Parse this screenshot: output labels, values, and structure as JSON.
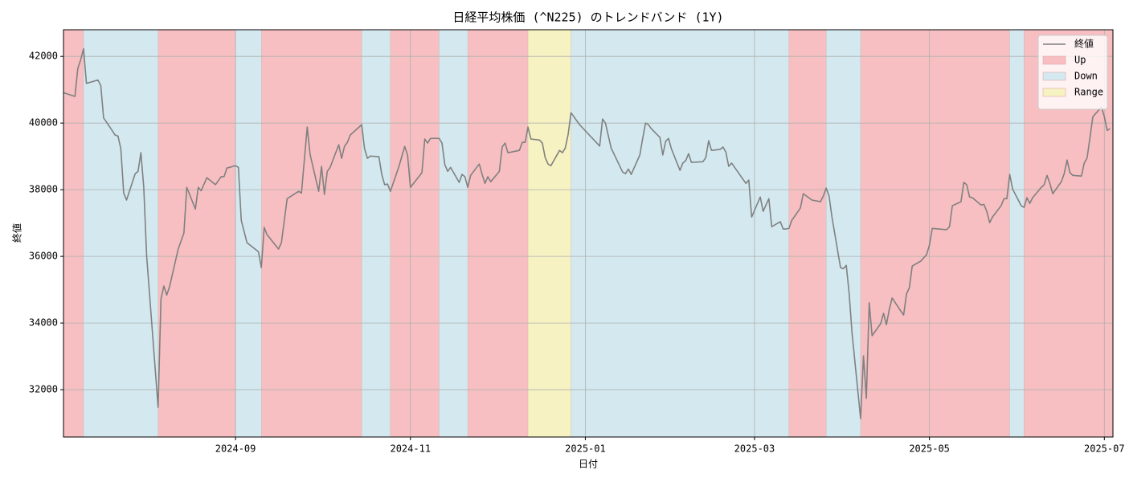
{
  "chart_data": {
    "type": "line",
    "title": "日経平均株価 (^N225) のトレンドバンド (1Y)",
    "xlabel": "日付",
    "ylabel": "終値",
    "xlim": [
      "2024-07-03",
      "2025-07-04"
    ],
    "xticks": [
      "2024-09",
      "2024-11",
      "2025-01",
      "2025-03",
      "2025-05",
      "2025-07"
    ],
    "ylim": [
      30580,
      42800
    ],
    "yticks": [
      32000,
      34000,
      36000,
      38000,
      40000,
      42000
    ],
    "grid": true,
    "legend": "upper right",
    "x": [
      "2024-07-03",
      "2024-07-07",
      "2024-07-08",
      "2024-07-09",
      "2024-07-10",
      "2024-07-11",
      "2024-07-15",
      "2024-07-16",
      "2024-07-17",
      "2024-07-18",
      "2024-07-21",
      "2024-07-22",
      "2024-07-23",
      "2024-07-24",
      "2024-07-25",
      "2024-07-28",
      "2024-07-29",
      "2024-07-30",
      "2024-07-31",
      "2024-08-01",
      "2024-08-05",
      "2024-08-06",
      "2024-08-07",
      "2024-08-08",
      "2024-08-09",
      "2024-08-12",
      "2024-08-14",
      "2024-08-15",
      "2024-08-18",
      "2024-08-19",
      "2024-08-20",
      "2024-08-22",
      "2024-08-25",
      "2024-08-27",
      "2024-08-28",
      "2024-08-29",
      "2024-09-01",
      "2024-09-02",
      "2024-09-03",
      "2024-09-05",
      "2024-09-09",
      "2024-09-10",
      "2024-09-11",
      "2024-09-12",
      "2024-09-16",
      "2024-09-17",
      "2024-09-19",
      "2024-09-23",
      "2024-09-24",
      "2024-09-26",
      "2024-09-27",
      "2024-09-30",
      "2024-10-01",
      "2024-10-02",
      "2024-10-03",
      "2024-10-04",
      "2024-10-07",
      "2024-10-08",
      "2024-10-09",
      "2024-10-10",
      "2024-10-11",
      "2024-10-15",
      "2024-10-16",
      "2024-10-17",
      "2024-10-18",
      "2024-10-21",
      "2024-10-22",
      "2024-10-23",
      "2024-10-24",
      "2024-10-25",
      "2024-10-28",
      "2024-10-30",
      "2024-10-31",
      "2024-11-01",
      "2024-11-05",
      "2024-11-06",
      "2024-11-07",
      "2024-11-08",
      "2024-11-11",
      "2024-11-12",
      "2024-11-13",
      "2024-11-14",
      "2024-11-15",
      "2024-11-18",
      "2024-11-19",
      "2024-11-20",
      "2024-11-21",
      "2024-11-22",
      "2024-11-25",
      "2024-11-26",
      "2024-11-27",
      "2024-11-28",
      "2024-11-29",
      "2024-12-02",
      "2024-12-03",
      "2024-12-04",
      "2024-12-05",
      "2024-12-09",
      "2024-12-10",
      "2024-12-11",
      "2024-12-12",
      "2024-12-13",
      "2024-12-16",
      "2024-12-17",
      "2024-12-18",
      "2024-12-19",
      "2024-12-20",
      "2024-12-23",
      "2024-12-24",
      "2024-12-25",
      "2024-12-26",
      "2024-12-27",
      "2024-12-30",
      "2025-01-06",
      "2025-01-07",
      "2025-01-08",
      "2025-01-10",
      "2025-01-14",
      "2025-01-15",
      "2025-01-16",
      "2025-01-17",
      "2025-01-20",
      "2025-01-21",
      "2025-01-22",
      "2025-01-23",
      "2025-01-24",
      "2025-01-27",
      "2025-01-28",
      "2025-01-29",
      "2025-01-30",
      "2025-01-31",
      "2025-02-03",
      "2025-02-04",
      "2025-02-05",
      "2025-02-06",
      "2025-02-07",
      "2025-02-11",
      "2025-02-12",
      "2025-02-13",
      "2025-02-14",
      "2025-02-17",
      "2025-02-18",
      "2025-02-19",
      "2025-02-20",
      "2025-02-21",
      "2025-02-25",
      "2025-02-26",
      "2025-02-27",
      "2025-02-28",
      "2025-03-03",
      "2025-03-04",
      "2025-03-05",
      "2025-03-06",
      "2025-03-07",
      "2025-03-10",
      "2025-03-11",
      "2025-03-12",
      "2025-03-13",
      "2025-03-14",
      "2025-03-17",
      "2025-03-18",
      "2025-03-21",
      "2025-03-24",
      "2025-03-25",
      "2025-03-26",
      "2025-03-27",
      "2025-03-28",
      "2025-03-31",
      "2025-04-01",
      "2025-04-02",
      "2025-04-03",
      "2025-04-04",
      "2025-04-07",
      "2025-04-08",
      "2025-04-09",
      "2025-04-10",
      "2025-04-11",
      "2025-04-14",
      "2025-04-15",
      "2025-04-16",
      "2025-04-17",
      "2025-04-18",
      "2025-04-21",
      "2025-04-22",
      "2025-04-23",
      "2025-04-24",
      "2025-04-25",
      "2025-04-28",
      "2025-04-30",
      "2025-05-01",
      "2025-05-02",
      "2025-05-07",
      "2025-05-08",
      "2025-05-09",
      "2025-05-12",
      "2025-05-13",
      "2025-05-14",
      "2025-05-15",
      "2025-05-16",
      "2025-05-19",
      "2025-05-20",
      "2025-05-21",
      "2025-05-22",
      "2025-05-23",
      "2025-05-26",
      "2025-05-27",
      "2025-05-28",
      "2025-05-29",
      "2025-05-30",
      "2025-06-02",
      "2025-06-03",
      "2025-06-04",
      "2025-06-05",
      "2025-06-06",
      "2025-06-09",
      "2025-06-10",
      "2025-06-11",
      "2025-06-12",
      "2025-06-13",
      "2025-06-16",
      "2025-06-17",
      "2025-06-18",
      "2025-06-19",
      "2025-06-20",
      "2025-06-23",
      "2025-06-24",
      "2025-06-25",
      "2025-06-26",
      "2025-06-27",
      "2025-06-30",
      "2025-07-01",
      "2025-07-02",
      "2025-07-03"
    ],
    "series": [
      {
        "name": "終値",
        "color": "#808080",
        "values": [
          40910,
          40800,
          41640,
          41900,
          42230,
          41190,
          41290,
          41130,
          40150,
          40030,
          39640,
          39610,
          39230,
          37900,
          37690,
          38480,
          38550,
          39110,
          38070,
          36020,
          31470,
          34720,
          35110,
          34840,
          35090,
          36220,
          36700,
          38070,
          37420,
          38070,
          37970,
          38360,
          38150,
          38390,
          38390,
          38650,
          38720,
          38670,
          37080,
          36410,
          36140,
          35660,
          36870,
          36650,
          36220,
          36410,
          37730,
          37950,
          37900,
          39880,
          39060,
          37950,
          38700,
          37860,
          38550,
          38670,
          39350,
          38940,
          39300,
          39420,
          39640,
          39950,
          39230,
          38940,
          39010,
          38990,
          38460,
          38150,
          38170,
          37950,
          38700,
          39300,
          39040,
          38070,
          38510,
          39520,
          39400,
          39540,
          39540,
          39400,
          38750,
          38550,
          38670,
          38220,
          38460,
          38390,
          38070,
          38430,
          38770,
          38460,
          38190,
          38390,
          38240,
          38550,
          39280,
          39400,
          39110,
          39180,
          39420,
          39420,
          39880,
          39520,
          39490,
          39400,
          38960,
          38770,
          38720,
          39180,
          39110,
          39250,
          39660,
          40310,
          39950,
          39310,
          40120,
          40000,
          39250,
          38530,
          38480,
          38620,
          38460,
          39040,
          39540,
          40000,
          39950,
          39830,
          39570,
          39040,
          39450,
          39540,
          39230,
          38580,
          38800,
          38870,
          39080,
          38820,
          38840,
          38960,
          39470,
          39180,
          39210,
          39280,
          39130,
          38700,
          38800,
          38310,
          38190,
          38290,
          37180,
          37780,
          37350,
          37540,
          37730,
          36890,
          37040,
          36820,
          36820,
          36840,
          37080,
          37450,
          37880,
          37690,
          37640,
          37810,
          38050,
          37810,
          37180,
          35660,
          35630,
          35730,
          34890,
          33710,
          31130,
          33010,
          31740,
          34610,
          33620,
          33980,
          34290,
          33950,
          34410,
          34750,
          34360,
          34240,
          34870,
          35060,
          35710,
          35860,
          36050,
          36340,
          36840,
          36800,
          36890,
          37520,
          37640,
          38220,
          38150,
          37780,
          37760,
          37540,
          37560,
          37350,
          37010,
          37180,
          37520,
          37730,
          37730,
          38460,
          38020,
          37520,
          37470,
          37760,
          37590,
          37760,
          38070,
          38150,
          38430,
          38190,
          37880,
          38240,
          38480,
          38890,
          38510,
          38430,
          38410,
          38800,
          38960,
          39570,
          40190,
          40480,
          40190,
          39780,
          39830
        ]
      }
    ],
    "band_styles": [
      {
        "name": "Up",
        "color": "#f7bfc1"
      },
      {
        "name": "Down",
        "color": "#d3e9ef"
      },
      {
        "name": "Range",
        "color": "#f6f2c2"
      }
    ],
    "bands": [
      {
        "start": "2024-07-03",
        "end": "2024-07-10",
        "trend": "Up"
      },
      {
        "start": "2024-07-10",
        "end": "2024-08-05",
        "trend": "Down"
      },
      {
        "start": "2024-08-05",
        "end": "2024-09-01",
        "trend": "Up"
      },
      {
        "start": "2024-09-01",
        "end": "2024-09-10",
        "trend": "Down"
      },
      {
        "start": "2024-09-10",
        "end": "2024-10-15",
        "trend": "Up"
      },
      {
        "start": "2024-10-15",
        "end": "2024-10-25",
        "trend": "Down"
      },
      {
        "start": "2024-10-25",
        "end": "2024-11-11",
        "trend": "Up"
      },
      {
        "start": "2024-11-11",
        "end": "2024-11-21",
        "trend": "Down"
      },
      {
        "start": "2024-11-21",
        "end": "2024-12-12",
        "trend": "Up"
      },
      {
        "start": "2024-12-12",
        "end": "2024-12-27",
        "trend": "Range"
      },
      {
        "start": "2024-12-27",
        "end": "2025-03-13",
        "trend": "Down"
      },
      {
        "start": "2025-03-13",
        "end": "2025-03-26",
        "trend": "Up"
      },
      {
        "start": "2025-03-26",
        "end": "2025-04-07",
        "trend": "Down"
      },
      {
        "start": "2025-04-07",
        "end": "2025-05-29",
        "trend": "Up"
      },
      {
        "start": "2025-05-29",
        "end": "2025-06-03",
        "trend": "Down"
      },
      {
        "start": "2025-06-03",
        "end": "2025-07-04",
        "trend": "Up"
      }
    ]
  }
}
